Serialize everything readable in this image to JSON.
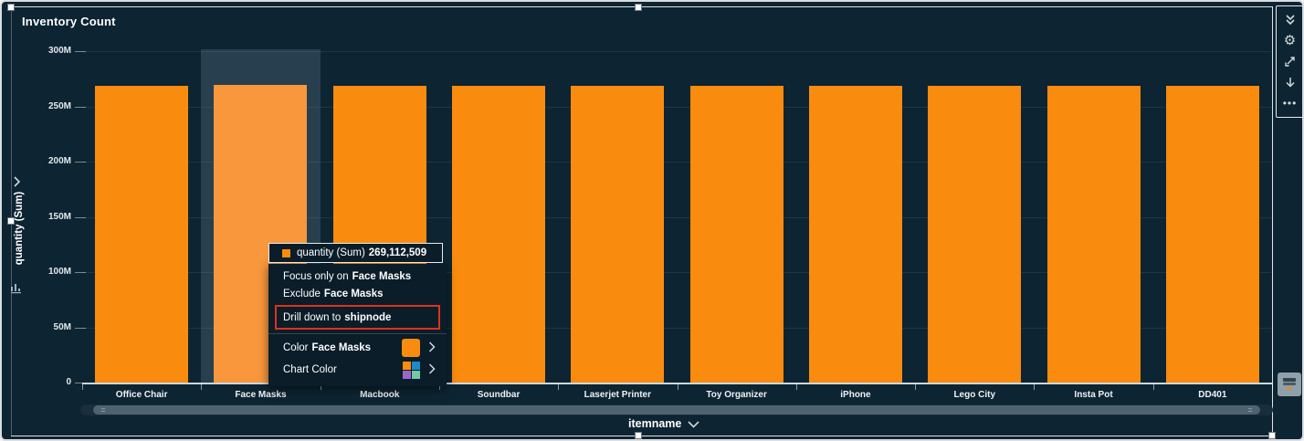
{
  "title": "Inventory Count",
  "y_axis": {
    "label": "quantity (Sum)"
  },
  "x_axis": {
    "label": "itemname"
  },
  "chart_data": {
    "type": "bar",
    "title": "Inventory Count",
    "xlabel": "itemname",
    "ylabel": "quantity (Sum)",
    "categories": [
      "Office Chair",
      "Face Masks",
      "Macbook",
      "Soundbar",
      "Laserjet Printer",
      "Toy Organizer",
      "iPhone",
      "Lego City",
      "Insta Pot",
      "DD401"
    ],
    "values": [
      268600000,
      269112509,
      268600000,
      268500000,
      268700000,
      268500000,
      268600000,
      268500000,
      268600000,
      268500000
    ],
    "ylim": [
      0,
      300000000
    ],
    "ytick_values": [
      0,
      50000000,
      100000000,
      150000000,
      200000000,
      250000000,
      300000000
    ],
    "ytick_labels": [
      "0",
      "50M",
      "100M",
      "150M",
      "200M",
      "250M",
      "300M"
    ],
    "highlighted_category": "Face Masks",
    "highlighted_value_label": "269,112,509",
    "grid": "faint-horizontal",
    "legend": "none"
  },
  "tooltip": {
    "series_label": "quantity (Sum)",
    "value": "269,112,509"
  },
  "context_menu": {
    "items": [
      {
        "prefix": "Focus only on",
        "bold": "Face Masks"
      },
      {
        "prefix": "Exclude",
        "bold": "Face Masks"
      },
      {
        "prefix": "Drill down to",
        "bold": "shipnode",
        "highlighted": true
      },
      {
        "prefix": "Color",
        "bold": "Face Masks",
        "swatch": "single",
        "chevron": "›"
      },
      {
        "prefix": "Chart Color",
        "bold": "",
        "swatch": "multi",
        "chevron": "›"
      }
    ]
  },
  "toolbar": {
    "icons": [
      "collapse-double-chevron",
      "settings-gear",
      "maximize",
      "export-down-arrow",
      "more-options"
    ]
  },
  "theme": {
    "background": "#0d2432",
    "menu_background": "#0a1d29",
    "bar_color": "#f98c0e",
    "bar_highlight_color": "#f8973c",
    "drill_highlight_red": "#df321a",
    "text_color": "#ffffff",
    "chart_color_swatches": [
      "#f98c0e",
      "#1f8ac9",
      "#9a66c9",
      "#74c7a9"
    ]
  }
}
